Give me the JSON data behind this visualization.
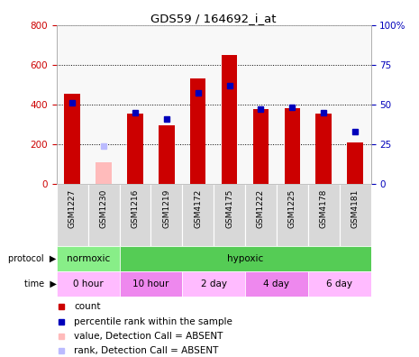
{
  "title": "GDS59 / 164692_i_at",
  "samples": [
    "GSM1227",
    "GSM1230",
    "GSM1216",
    "GSM1219",
    "GSM4172",
    "GSM4175",
    "GSM1222",
    "GSM1225",
    "GSM4178",
    "GSM4181"
  ],
  "counts": [
    455,
    null,
    355,
    295,
    530,
    648,
    375,
    380,
    355,
    208
  ],
  "counts_absent": [
    null,
    110,
    null,
    null,
    null,
    null,
    null,
    null,
    null,
    null
  ],
  "ranks": [
    51,
    null,
    45,
    41,
    57,
    62,
    47,
    48,
    45,
    33
  ],
  "ranks_absent": [
    null,
    24,
    null,
    null,
    null,
    null,
    null,
    null,
    null,
    null
  ],
  "count_color": "#cc0000",
  "count_absent_color": "#ffbbbb",
  "rank_color": "#0000bb",
  "rank_absent_color": "#bbbbff",
  "ylim_left": [
    0,
    800
  ],
  "ylim_right": [
    0,
    100
  ],
  "yticks_left": [
    0,
    200,
    400,
    600,
    800
  ],
  "yticks_right": [
    0,
    25,
    50,
    75,
    100
  ],
  "ytick_labels_right": [
    "0",
    "25",
    "50",
    "75",
    "100%"
  ],
  "protocol_items": [
    {
      "label": "normoxic",
      "span": [
        0,
        2
      ],
      "color": "#88ee88"
    },
    {
      "label": "hypoxic",
      "span": [
        2,
        10
      ],
      "color": "#55cc55"
    }
  ],
  "time_items": [
    {
      "label": "0 hour",
      "span": [
        0,
        2
      ],
      "color": "#ffbbff"
    },
    {
      "label": "10 hour",
      "span": [
        2,
        4
      ],
      "color": "#ee88ee"
    },
    {
      "label": "2 day",
      "span": [
        4,
        6
      ],
      "color": "#ffbbff"
    },
    {
      "label": "4 day",
      "span": [
        6,
        8
      ],
      "color": "#ee88ee"
    },
    {
      "label": "6 day",
      "span": [
        8,
        10
      ],
      "color": "#ffbbff"
    }
  ],
  "legend_items": [
    {
      "label": "count",
      "color": "#cc0000"
    },
    {
      "label": "percentile rank within the sample",
      "color": "#0000bb"
    },
    {
      "label": "value, Detection Call = ABSENT",
      "color": "#ffbbbb"
    },
    {
      "label": "rank, Detection Call = ABSENT",
      "color": "#bbbbff"
    }
  ],
  "xtick_bg": "#d0d0d0",
  "background_color": "#ffffff",
  "plot_bg_color": "#f8f8f8"
}
